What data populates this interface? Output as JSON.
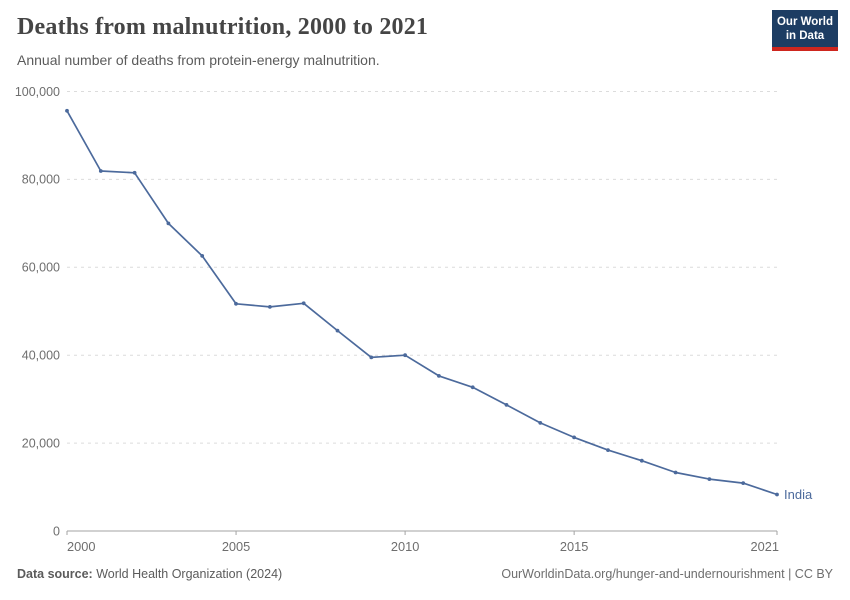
{
  "header": {
    "title": "Deaths from malnutrition, 2000 to 2021",
    "subtitle": "Annual number of deaths from protein-energy malnutrition."
  },
  "logo": {
    "line1": "Our World",
    "line2": "in Data",
    "bg_color": "#1d3d63",
    "bar_color": "#ce261e"
  },
  "footer": {
    "source_label": "Data source:",
    "source_value": "World Health Organization (2024)",
    "credit": "OurWorldinData.org/hunger-and-undernourishment | CC BY"
  },
  "chart_data": {
    "type": "line",
    "title": "Deaths from malnutrition, 2000 to 2021",
    "subtitle": "Annual number of deaths from protein-energy malnutrition.",
    "xlabel": "",
    "ylabel": "",
    "xlim": [
      2000,
      2021
    ],
    "ylim": [
      0,
      100000
    ],
    "x_ticks": [
      2000,
      2005,
      2010,
      2015,
      2021
    ],
    "y_ticks": [
      0,
      20000,
      40000,
      60000,
      80000,
      100000
    ],
    "grid": true,
    "legend_position": "end-of-line",
    "x": [
      2000,
      2001,
      2002,
      2003,
      2004,
      2005,
      2006,
      2007,
      2008,
      2009,
      2010,
      2011,
      2012,
      2013,
      2014,
      2015,
      2016,
      2017,
      2018,
      2019,
      2020,
      2021
    ],
    "series": [
      {
        "name": "India",
        "color": "#4C6A9C",
        "values": [
          95600,
          81900,
          81500,
          70000,
          62600,
          51700,
          51000,
          51800,
          45600,
          39500,
          40000,
          35300,
          32700,
          28700,
          24600,
          21300,
          18400,
          16000,
          13300,
          11800,
          10900,
          8300
        ]
      }
    ],
    "style": {
      "grid_color": "#dcdcdc",
      "axis_color": "#a3a3a3",
      "tick_label_color": "#6e6e6e"
    }
  }
}
